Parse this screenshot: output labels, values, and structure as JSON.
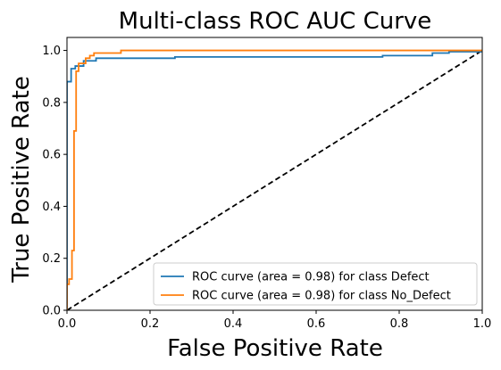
{
  "chart_data": {
    "type": "line",
    "title": "Multi-class ROC AUC Curve",
    "xlabel": "False Positive Rate",
    "ylabel": "True Positive Rate",
    "xlim": [
      0.0,
      1.0
    ],
    "ylim": [
      0.0,
      1.05
    ],
    "x_ticks": [
      "0.0",
      "0.2",
      "0.4",
      "0.6",
      "0.8",
      "1.0"
    ],
    "y_ticks": [
      "0.0",
      "0.2",
      "0.4",
      "0.6",
      "0.8",
      "1.0"
    ],
    "grid": false,
    "legend_position": "lower-right",
    "colors": {
      "defect": "#1f77b4",
      "no_defect": "#ff7f0e",
      "diagonal": "#000000"
    },
    "series": [
      {
        "name": "ROC curve (area = 0.98) for class Defect",
        "color": "#1f77b4",
        "x": [
          0.0,
          0.0,
          0.01,
          0.01,
          0.02,
          0.02,
          0.04,
          0.04,
          0.07,
          0.07,
          0.26,
          0.26,
          0.76,
          0.76,
          0.88,
          0.88,
          0.92,
          0.92,
          1.0,
          1.0
        ],
        "y": [
          0.0,
          0.88,
          0.88,
          0.93,
          0.93,
          0.94,
          0.94,
          0.96,
          0.96,
          0.97,
          0.97,
          0.975,
          0.975,
          0.98,
          0.98,
          0.99,
          0.99,
          0.995,
          0.995,
          1.0
        ]
      },
      {
        "name": "ROC curve (area = 0.98) for class No_Defect",
        "color": "#ff7f0e",
        "x": [
          0.0,
          0.0,
          0.005,
          0.005,
          0.012,
          0.012,
          0.017,
          0.017,
          0.022,
          0.022,
          0.028,
          0.028,
          0.045,
          0.045,
          0.055,
          0.055,
          0.065,
          0.065,
          0.13,
          0.13,
          1.0
        ],
        "y": [
          0.0,
          0.1,
          0.1,
          0.12,
          0.12,
          0.23,
          0.23,
          0.69,
          0.69,
          0.92,
          0.92,
          0.95,
          0.95,
          0.97,
          0.97,
          0.98,
          0.98,
          0.99,
          0.99,
          1.0,
          1.0
        ]
      }
    ],
    "reference_line": {
      "x": [
        0.0,
        1.0
      ],
      "y": [
        0.0,
        1.0
      ],
      "style": "dashed",
      "color": "#000000"
    }
  }
}
